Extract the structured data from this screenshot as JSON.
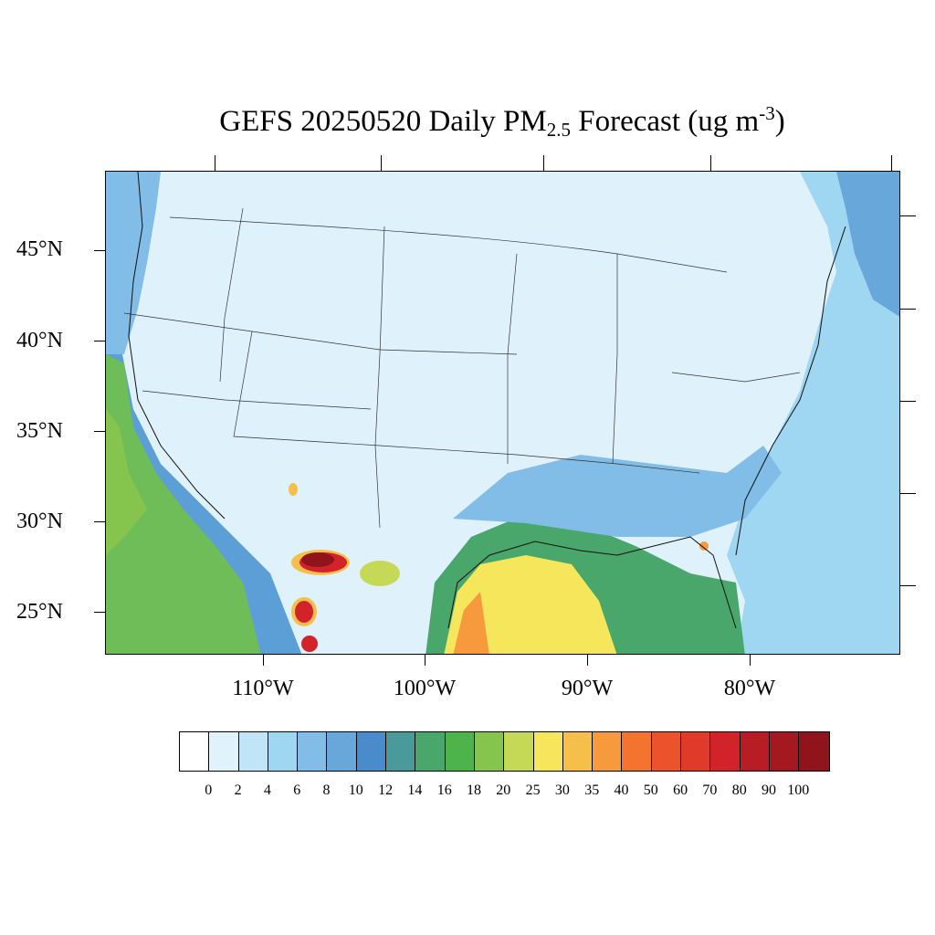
{
  "title": {
    "prefix": "GEFS 20250520 Daily PM",
    "subscript": "2.5",
    "middle": " Forecast (ug m",
    "superscript": "-3",
    "suffix": ")"
  },
  "map": {
    "lat_labels": [
      "45°N",
      "40°N",
      "35°N",
      "30°N",
      "25°N"
    ],
    "lon_labels": [
      "110°W",
      "100°W",
      "90°W",
      "80°W"
    ],
    "background_color": "#dff1fb",
    "ocean_color": "#9bd3f0",
    "land_color": "#e2f3fc"
  },
  "colorbar": {
    "labels": [
      "0",
      "2",
      "4",
      "6",
      "8",
      "10",
      "12",
      "14",
      "16",
      "18",
      "20",
      "25",
      "30",
      "35",
      "40",
      "50",
      "60",
      "70",
      "80",
      "90",
      "100"
    ],
    "colors": [
      "#ffffff",
      "#e0f3fb",
      "#bfe5f7",
      "#9fd7f3",
      "#81bde6",
      "#67a7da",
      "#4a8bcb",
      "#4a9a9a",
      "#4aa76b",
      "#4cb44a",
      "#86c54d",
      "#c5d957",
      "#f5e65b",
      "#f6bf4a",
      "#f69a3d",
      "#f3732f",
      "#ea532c",
      "#df3a2a",
      "#d2232a",
      "#b81c25",
      "#a3191f",
      "#8f141b"
    ]
  }
}
